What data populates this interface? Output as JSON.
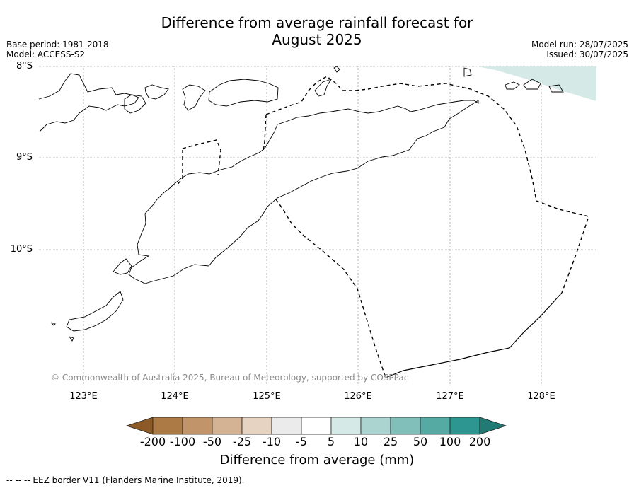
{
  "title_line1": "Difference from average rainfall forecast for",
  "title_line2": "August 2025",
  "meta_left": [
    "Base period: 1981-2018",
    "Model: ACCESS-S2"
  ],
  "meta_right": [
    "Model run: 28/07/2025",
    "Issued: 30/07/2025"
  ],
  "lat_labels": [
    "8°S",
    "9°S",
    "10°S"
  ],
  "lon_labels": [
    "123°E",
    "124°E",
    "125°E",
    "126°E",
    "127°E",
    "128°E"
  ],
  "copyright": "© Commonwealth of Australia 2025, Bureau of Meteorology, supported by COSPPac",
  "colorbar": {
    "ticks": [
      "-200",
      "-100",
      "-50",
      "-25",
      "-10",
      "-5",
      "5",
      "10",
      "25",
      "50",
      "100",
      "200"
    ],
    "colors": [
      "#8c5a26",
      "#ac7a44",
      "#c29469",
      "#d3b393",
      "#e6d3c2",
      "#ebebeb",
      "#ffffff",
      "#d5e9e7",
      "#abd4d1",
      "#80bfba",
      "#56aaa4",
      "#2e9690",
      "#227a74"
    ],
    "label": "Difference from average (mm)"
  },
  "footnote": "--  --  -- EEZ border V11 (Flanders Marine Institute, 2019).",
  "legend_color_patch": "#d5e9e7"
}
